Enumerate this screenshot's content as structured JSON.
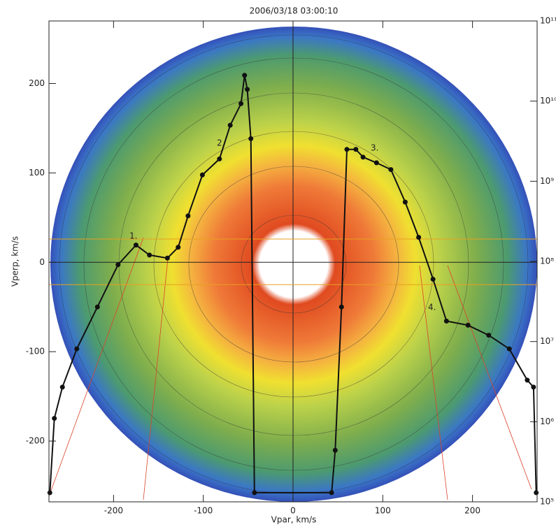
{
  "chart_data": {
    "type": "line",
    "title": "2006/03/18 03:00:10",
    "x_label": "Vpar, km/s",
    "y_label": "Vperp, km/s",
    "xlim": [
      -272,
      272
    ],
    "xticks": [
      -200,
      -100,
      0,
      100,
      200
    ],
    "ylim": [
      -268,
      270
    ],
    "yticks": [
      -200,
      -100,
      0,
      100,
      200
    ],
    "y2lim": [
      100000,
      100000000000
    ],
    "y2log": true,
    "y2ticks": [
      {
        "value": 100000,
        "label": "10⁵"
      },
      {
        "value": 1000000,
        "label": "10⁶"
      },
      {
        "value": 10000000,
        "label": "10⁷"
      },
      {
        "value": 100000000,
        "label": "10⁸"
      },
      {
        "value": 1000000000,
        "label": "10⁹"
      },
      {
        "value": 10000000000,
        "label": "10¹⁰"
      },
      {
        "value": 100000000000,
        "label": "10¹¹"
      }
    ],
    "hlines": [
      26,
      -25
    ],
    "hline_color": "#e8a020",
    "annotations": [
      "1.",
      "2.",
      "3.",
      "4."
    ],
    "series": [
      {
        "color": "#111111",
        "axis": "y2",
        "x": [
          -271,
          -266,
          -257,
          -241,
          -218,
          -195,
          -175,
          -160,
          -140,
          -128,
          -117,
          -101,
          -82,
          -70,
          -58,
          -54,
          -51,
          -47,
          -43,
          43,
          47,
          54,
          60,
          70,
          78,
          93,
          109,
          125,
          140,
          156,
          171,
          195,
          218,
          241,
          261,
          268,
          271
        ],
        "values": [
          130000,
          1100000,
          2700000,
          8100000,
          27000000,
          91000000,
          160000000,
          120000000,
          110000000,
          150000000,
          370000000,
          1200000000,
          1900000000,
          5000000000,
          9300000000,
          21000000000,
          14000000000,
          3400000000,
          130000,
          130000,
          440000,
          27000000,
          2500000000,
          2500000000,
          2000000000,
          1700000000,
          1400000000,
          550000000,
          200000000,
          60000000,
          18000000,
          16000000,
          12000000,
          8100000,
          3300000,
          2700000,
          130000
        ]
      }
    ]
  }
}
